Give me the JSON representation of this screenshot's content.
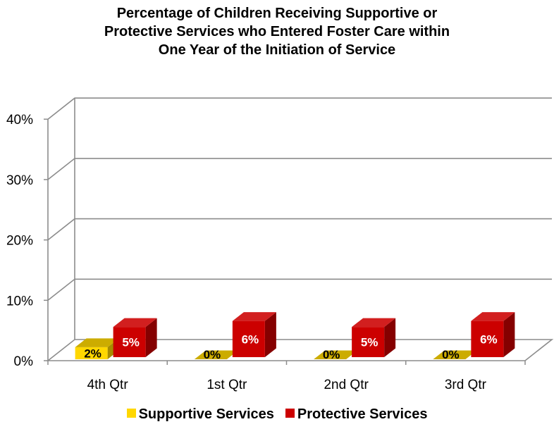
{
  "chart_data": {
    "type": "bar",
    "title_lines": [
      "Percentage of Children Receiving Supportive or",
      "Protective Services who Entered Foster Care within",
      "One Year of the Initiation of Service"
    ],
    "categories": [
      "4th Qtr",
      "1st Qtr",
      "2nd Qtr",
      "3rd Qtr"
    ],
    "series": [
      {
        "name": "Supportive Services",
        "values": [
          2,
          0,
          0,
          0
        ],
        "labels": [
          "2%",
          "0%",
          "0%",
          "0%"
        ],
        "color": "#FFD700"
      },
      {
        "name": "Protective Services",
        "values": [
          5,
          6,
          5,
          6
        ],
        "labels": [
          "5%",
          "6%",
          "5%",
          "6%"
        ],
        "color": "#CC0000"
      }
    ],
    "y_ticks": [
      "0%",
      "10%",
      "20%",
      "30%",
      "40%"
    ],
    "ylim": [
      0,
      40
    ],
    "grid": true,
    "legend_position": "bottom",
    "style": "3d-clustered-column"
  }
}
